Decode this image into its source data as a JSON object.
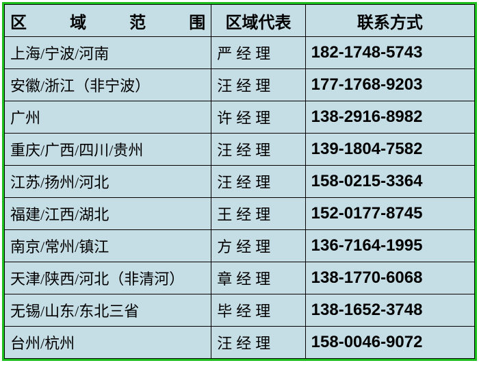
{
  "table": {
    "headers": {
      "region": "区　　域　　范　　围",
      "rep": "区域代表",
      "phone": "联系方式"
    },
    "rows": [
      {
        "region": "上海/宁波/河南",
        "rep": "严经理",
        "phone": "182-1748-5743"
      },
      {
        "region": "安徽/浙江（非宁波）",
        "rep": "汪经理",
        "phone": "177-1768-9203"
      },
      {
        "region": "广州",
        "rep": "许经理",
        "phone": "138-2916-8982"
      },
      {
        "region": "重庆/广西/四川/贵州",
        "rep": "汪经理",
        "phone": "139-1804-7582"
      },
      {
        "region": "江苏/扬州/河北",
        "rep": "汪经理",
        "phone": "158-0215-3364"
      },
      {
        "region": "福建/江西/湖北",
        "rep": "王经理",
        "phone": "152-0177-8745"
      },
      {
        "region": "南京/常州/镇江",
        "rep": "方经理",
        "phone": "136-7164-1995"
      },
      {
        "region": "天津/陕西/河北（非清河）",
        "rep": "章经理",
        "phone": "138-1770-6068"
      },
      {
        "region": "无锡/山东/东北三省",
        "rep": "毕经理",
        "phone": "138-1652-3748"
      },
      {
        "region": "台州/杭州",
        "rep": "汪经理",
        "phone": "158-0046-9072"
      }
    ],
    "colors": {
      "border_outer": "#1dbf1d",
      "border_inner": "#000000",
      "cell_bg": "#c5dde5",
      "text": "#000000"
    }
  }
}
